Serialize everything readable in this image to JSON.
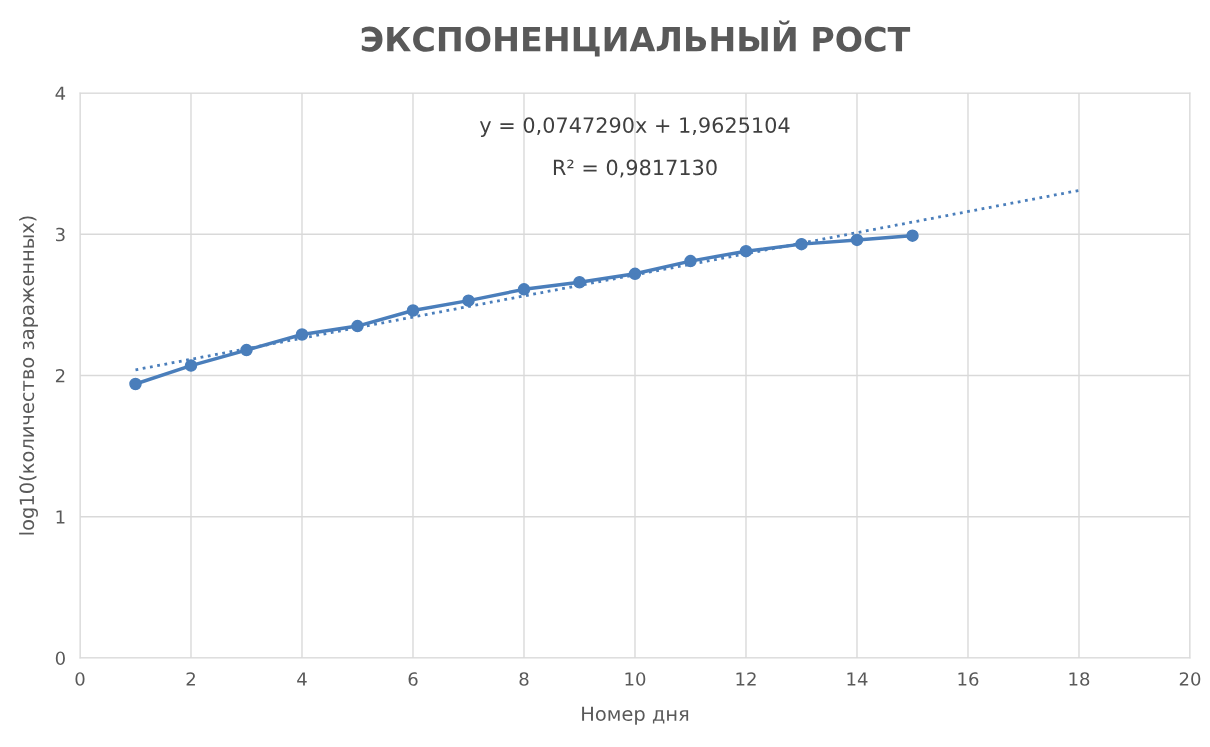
{
  "chart_data": {
    "type": "line",
    "title": "ЭКСПОНЕНЦИАЛЬНЫЙ РОСТ",
    "xlabel": "Номер дня",
    "ylabel": "log10(количество зараженных)",
    "annotations": [
      "y = 0,0747290x + 1,9625104",
      "R² = 0,9817130"
    ],
    "x": [
      1,
      2,
      3,
      4,
      5,
      6,
      7,
      8,
      9,
      10,
      11,
      12,
      13,
      14,
      15
    ],
    "series": [
      {
        "color": "#4a7ebb",
        "marker": "circle",
        "line_style": "solid",
        "values": [
          1.94,
          2.07,
          2.18,
          2.29,
          2.35,
          2.46,
          2.53,
          2.61,
          2.66,
          2.72,
          2.81,
          2.88,
          2.93,
          2.96,
          2.99
        ]
      },
      {
        "type": "line",
        "color": "#4a7ebb",
        "marker": "none",
        "line_style": "dotted",
        "x": [
          1,
          18
        ],
        "values": [
          2.04,
          3.31
        ]
      }
    ],
    "xlim": [
      0,
      20
    ],
    "xticks": [
      0,
      2,
      4,
      6,
      8,
      10,
      12,
      14,
      16,
      18,
      20
    ],
    "ylim": [
      0,
      4
    ],
    "yticks": [
      0,
      1,
      2,
      3,
      4
    ],
    "grid": true
  }
}
